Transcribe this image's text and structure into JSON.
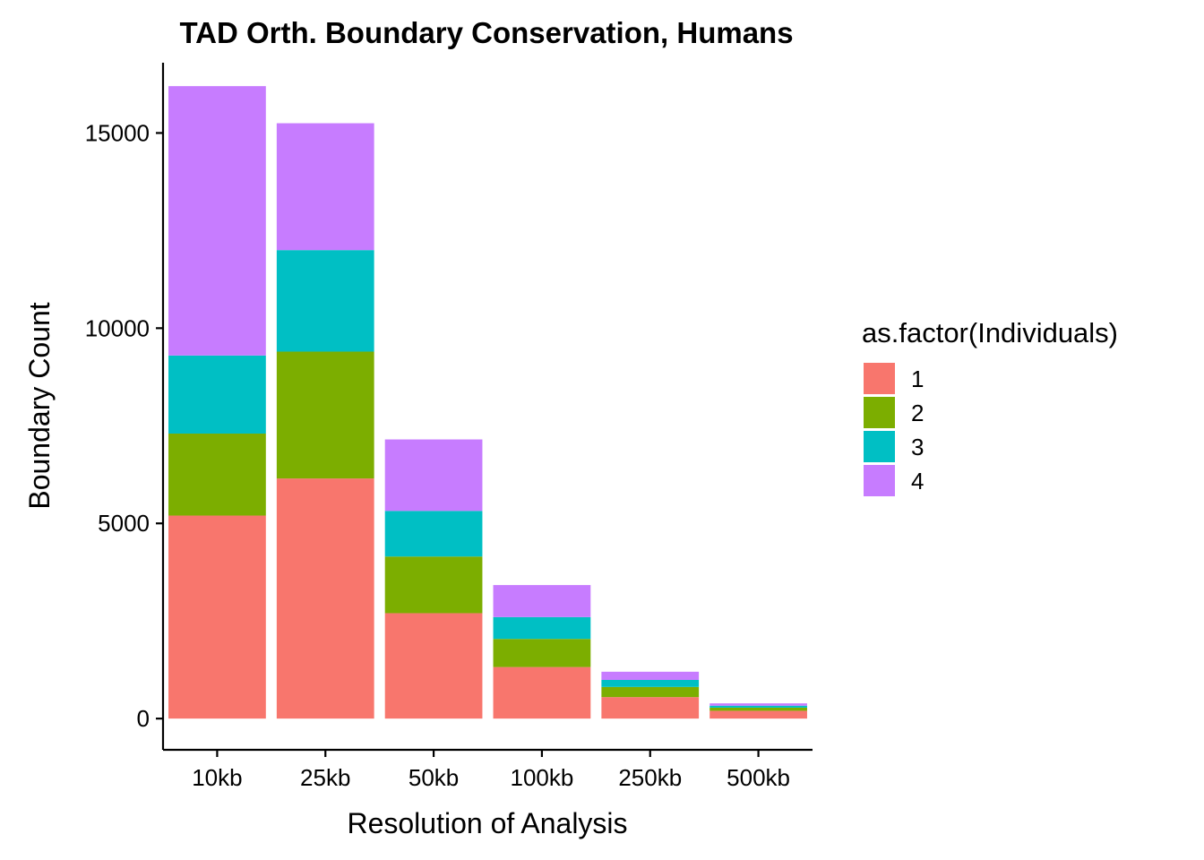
{
  "chart_data": {
    "type": "bar",
    "stacked": true,
    "title": "TAD Orth. Boundary Conservation, Humans",
    "xlabel": "Resolution of Analysis",
    "ylabel": "Boundary Count",
    "categories": [
      "10kb",
      "25kb",
      "50kb",
      "100kb",
      "250kb",
      "500kb"
    ],
    "ylim": [
      -800,
      16800
    ],
    "yticks": [
      0,
      5000,
      10000,
      15000
    ],
    "grid": false,
    "legend": {
      "title": "as.factor(Individuals)",
      "position": "right"
    },
    "series": [
      {
        "name": "1",
        "color": "#F8766D",
        "values": [
          5200,
          6150,
          2700,
          1320,
          550,
          200
        ]
      },
      {
        "name": "2",
        "color": "#7CAE00",
        "values": [
          2100,
          3250,
          1450,
          720,
          260,
          80
        ]
      },
      {
        "name": "3",
        "color": "#00BFC4",
        "values": [
          2000,
          2600,
          1170,
          560,
          180,
          50
        ]
      },
      {
        "name": "4",
        "color": "#C77CFF",
        "values": [
          6900,
          3250,
          1830,
          820,
          210,
          60
        ]
      }
    ]
  }
}
